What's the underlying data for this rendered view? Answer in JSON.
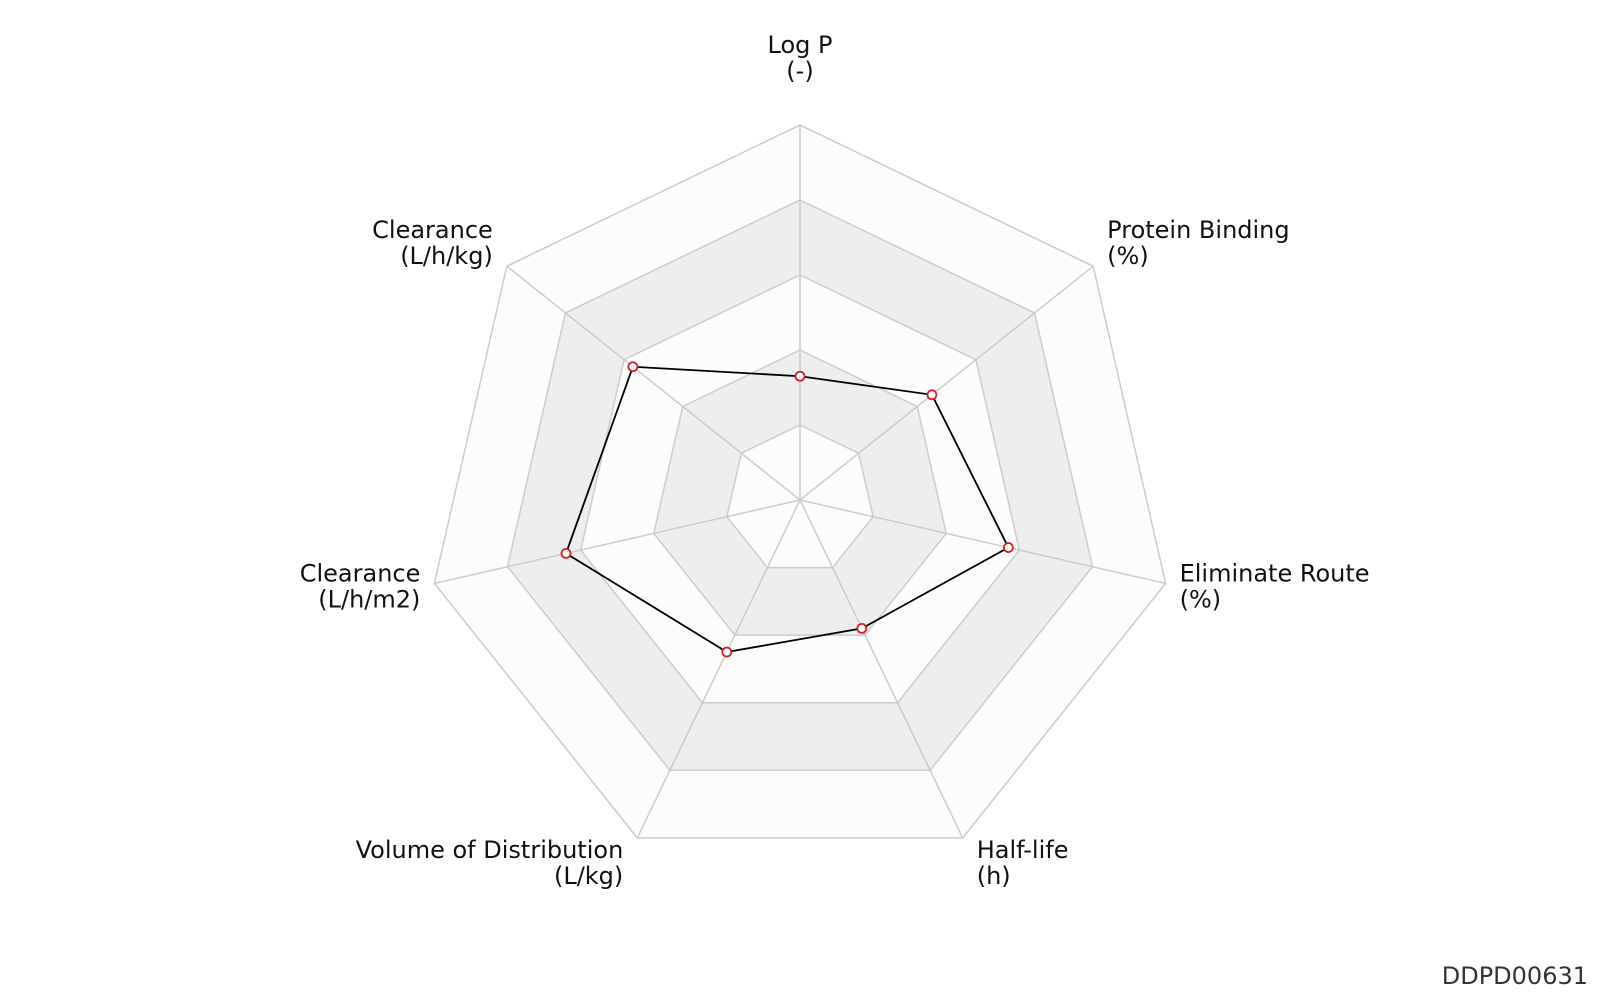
{
  "chart_data": {
    "type": "radar",
    "axes": [
      {
        "name": "Log P",
        "unit": "(-)"
      },
      {
        "name": "Protein Binding",
        "unit": "(%)"
      },
      {
        "name": "Eliminate Route",
        "unit": "(%)"
      },
      {
        "name": "Half-life",
        "unit": "(h)"
      },
      {
        "name": "Volume of Distribution",
        "unit": "(L/kg)"
      },
      {
        "name": "Clearance",
        "unit": "(L/h/m2)"
      },
      {
        "name": "Clearance",
        "unit": "(L/h/kg)"
      }
    ],
    "levels": 5,
    "max": 1,
    "values": [
      0.33,
      0.45,
      0.57,
      0.38,
      0.45,
      0.64,
      0.57
    ],
    "grid": true,
    "colors": {
      "band_light": "#fcfcfc",
      "band_dark": "#eeeeee",
      "grid": "#cccccc",
      "series_line": "#000000",
      "marker_stroke": "#cc2222",
      "marker_fill": "#ffffff"
    }
  },
  "corner_id": "DDPD00631"
}
